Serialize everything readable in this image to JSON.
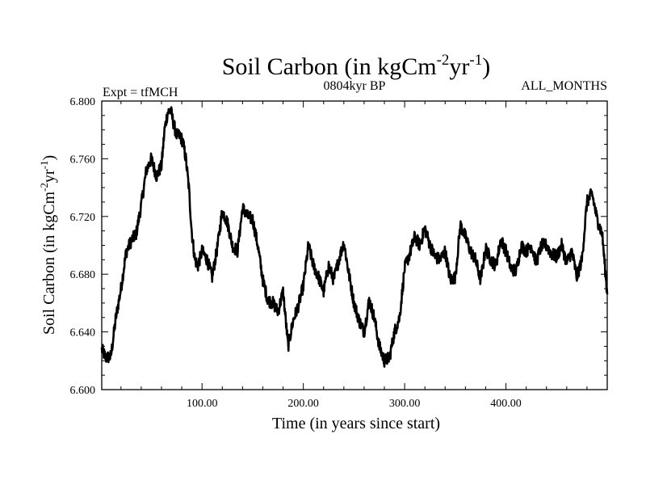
{
  "chart_data": {
    "type": "line",
    "title": {
      "base": "Soil Carbon (in kgCm",
      "sup1": "-2",
      "mid": "yr",
      "sup2": "-1",
      "end": ")"
    },
    "left_string": "Expt = tfMCH",
    "center_string": "0804kyr BP",
    "right_string": "ALL_MONTHS",
    "xlabel": "Time (in years since start)",
    "ylabel": {
      "base": "Soil Carbon (in kgCm",
      "sup1": "-2",
      "mid": "yr",
      "sup2": "-1",
      "end": ")"
    },
    "xlim": [
      1,
      500
    ],
    "ylim": [
      6.6,
      6.8
    ],
    "xticks": [
      100,
      200,
      300,
      400
    ],
    "xtick_labels": [
      "100.00",
      "200.00",
      "300.00",
      "400.00"
    ],
    "yticks": [
      6.6,
      6.64,
      6.68,
      6.72,
      6.76,
      6.8
    ],
    "ytick_labels": [
      "6.600",
      "6.640",
      "6.680",
      "6.720",
      "6.760",
      "6.800"
    ],
    "series": [
      {
        "name": "Soil Carbon",
        "color": "#000000",
        "x": [
          1,
          5,
          10,
          15,
          20,
          25,
          30,
          35,
          40,
          45,
          50,
          55,
          60,
          63,
          66,
          69,
          72,
          75,
          78,
          81,
          84,
          87,
          90,
          93,
          96,
          100,
          105,
          110,
          115,
          120,
          125,
          130,
          135,
          140,
          145,
          150,
          155,
          160,
          165,
          170,
          175,
          180,
          185,
          190,
          195,
          200,
          205,
          210,
          215,
          220,
          225,
          230,
          235,
          240,
          245,
          250,
          255,
          260,
          265,
          270,
          275,
          280,
          285,
          290,
          295,
          300,
          305,
          310,
          315,
          320,
          325,
          330,
          335,
          340,
          345,
          350,
          355,
          360,
          365,
          370,
          375,
          380,
          385,
          390,
          395,
          400,
          405,
          410,
          415,
          420,
          425,
          430,
          435,
          440,
          445,
          450,
          455,
          460,
          465,
          470,
          475,
          480,
          485,
          490,
          495,
          500
        ],
        "y": [
          6.628,
          6.622,
          6.623,
          6.65,
          6.67,
          6.695,
          6.703,
          6.708,
          6.728,
          6.752,
          6.76,
          6.748,
          6.755,
          6.78,
          6.792,
          6.794,
          6.784,
          6.776,
          6.776,
          6.772,
          6.76,
          6.74,
          6.708,
          6.69,
          6.686,
          6.696,
          6.69,
          6.678,
          6.698,
          6.724,
          6.716,
          6.7,
          6.696,
          6.726,
          6.72,
          6.718,
          6.7,
          6.676,
          6.662,
          6.66,
          6.654,
          6.668,
          6.63,
          6.648,
          6.658,
          6.672,
          6.7,
          6.686,
          6.678,
          6.668,
          6.686,
          6.676,
          6.69,
          6.702,
          6.68,
          6.66,
          6.648,
          6.64,
          6.662,
          6.65,
          6.63,
          6.62,
          6.622,
          6.64,
          6.65,
          6.684,
          6.694,
          6.706,
          6.7,
          6.712,
          6.7,
          6.692,
          6.69,
          6.696,
          6.676,
          6.678,
          6.714,
          6.706,
          6.696,
          6.69,
          6.676,
          6.698,
          6.69,
          6.686,
          6.704,
          6.696,
          6.684,
          6.682,
          6.7,
          6.696,
          6.7,
          6.688,
          6.7,
          6.7,
          6.694,
          6.692,
          6.7,
          6.688,
          6.696,
          6.678,
          6.69,
          6.73,
          6.736,
          6.718,
          6.708,
          6.666
        ]
      }
    ]
  }
}
